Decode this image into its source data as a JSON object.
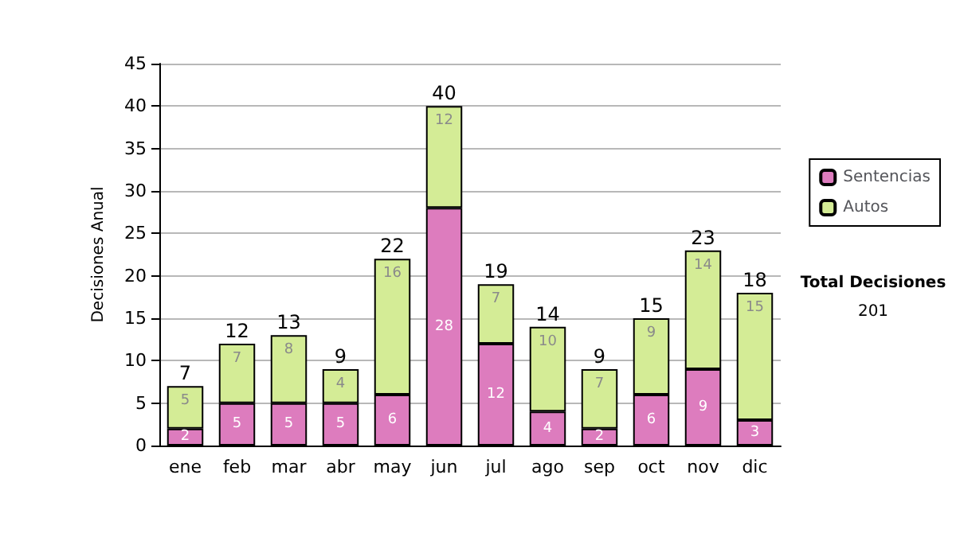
{
  "chart_data": {
    "type": "bar",
    "stacked": true,
    "ylabel": "Decisiones Anual",
    "categories": [
      "ene",
      "feb",
      "mar",
      "abr",
      "may",
      "jun",
      "jul",
      "ago",
      "sep",
      "oct",
      "nov",
      "dic"
    ],
    "series": [
      {
        "name": "Sentencias",
        "color": "#dd7cbe",
        "values": [
          2,
          5,
          5,
          5,
          6,
          28,
          12,
          4,
          2,
          6,
          9,
          3
        ]
      },
      {
        "name": "Autos",
        "color": "#d4ec96",
        "values": [
          5,
          7,
          8,
          4,
          16,
          12,
          7,
          10,
          7,
          9,
          14,
          15
        ]
      }
    ],
    "totals": [
      "7",
      "12",
      "13",
      "9",
      "22",
      "40",
      "19",
      "14",
      "9",
      "15",
      "23",
      "18"
    ],
    "ylim": [
      0,
      45
    ],
    "yticks": [
      0,
      5,
      10,
      15,
      20,
      25,
      30,
      35,
      40,
      45
    ],
    "grid": "y",
    "legend": "right",
    "data_labels": true,
    "annotations": [
      "Total Decisiones",
      "201"
    ]
  }
}
